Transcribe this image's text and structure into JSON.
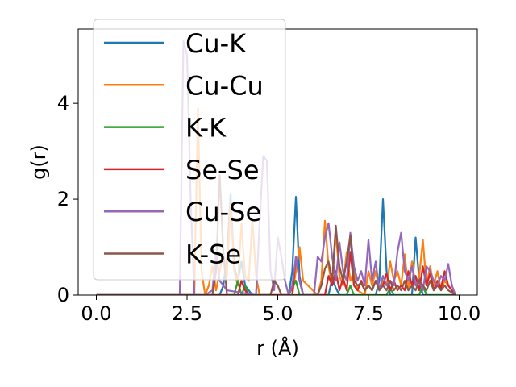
{
  "chart_data": {
    "type": "line",
    "xlabel": "r (Å)",
    "ylabel": "g(r)",
    "xlim": [
      -0.5,
      10.5
    ],
    "ylim": [
      0,
      5.55
    ],
    "xticks": [
      0.0,
      2.5,
      5.0,
      7.5,
      10.0
    ],
    "xtick_labels": [
      "0.0",
      "2.5",
      "5.0",
      "7.5",
      "10.0"
    ],
    "yticks": [
      0,
      2,
      4
    ],
    "ytick_labels": [
      "0",
      "2",
      "4"
    ],
    "grid": false,
    "legend_position": "top-left",
    "series": [
      {
        "name": "Cu-K",
        "color": "#1f77b4",
        "x": [
          0.0,
          3.3,
          3.4,
          3.5,
          3.6,
          3.7,
          3.8,
          3.9,
          4.0,
          4.1,
          4.3,
          5.3,
          5.4,
          5.5,
          5.6,
          5.7,
          6.4,
          6.5,
          6.6,
          6.7,
          6.8,
          7.7,
          7.8,
          7.9,
          8.0,
          8.1,
          8.7,
          8.8,
          8.9,
          9.0,
          9.9
        ],
        "y": [
          0,
          0,
          0,
          0.2,
          0.8,
          2.1,
          0.6,
          0.3,
          0.7,
          0.2,
          0,
          0,
          0.5,
          2.05,
          0.4,
          0,
          0,
          0.35,
          0.15,
          0,
          0,
          0,
          0.3,
          2.0,
          0.5,
          0,
          0,
          1.2,
          0.3,
          0,
          0
        ]
      },
      {
        "name": "Cu-Cu",
        "color": "#ff7f0e",
        "x": [
          0.0,
          2.7,
          2.8,
          2.9,
          3.0,
          3.1,
          3.2,
          3.3,
          3.5,
          3.6,
          3.7,
          3.8,
          3.9,
          4.0,
          4.1,
          4.2,
          4.3,
          4.4,
          4.5,
          5.4,
          5.5,
          5.6,
          5.7,
          6.1,
          6.2,
          6.3,
          6.4,
          6.5,
          6.6,
          6.7,
          6.8,
          6.9,
          7.0,
          7.1,
          7.2,
          7.4,
          7.5,
          7.6,
          7.7,
          7.8,
          7.9,
          8.0,
          8.1,
          8.2,
          8.3,
          8.4,
          8.5,
          8.6,
          8.7,
          8.8,
          8.9,
          9.0,
          9.1,
          9.2,
          9.3,
          9.4,
          9.5,
          9.6,
          9.7,
          9.8,
          9.9
        ],
        "y": [
          0,
          0,
          3.9,
          0.5,
          0,
          0.2,
          0.6,
          0.1,
          0.9,
          0.4,
          1.9,
          0.5,
          0.2,
          1.5,
          0.4,
          0.3,
          1.6,
          0.4,
          0,
          0,
          0.5,
          1.0,
          0.3,
          0,
          0.3,
          1.55,
          0.6,
          0.2,
          1.3,
          0.4,
          0.2,
          0.9,
          0.3,
          0.5,
          0.1,
          0,
          0.5,
          0.2,
          0.5,
          0.1,
          0.3,
          0.2,
          0.7,
          0.3,
          0.5,
          0.2,
          0.85,
          0.1,
          0.7,
          0.2,
          0.4,
          1.15,
          0.2,
          0.6,
          0.2,
          0.5,
          0.1,
          0.3,
          0.2,
          0.1,
          0
        ]
      },
      {
        "name": "K-K",
        "color": "#2ca02c",
        "x": [
          0.0,
          3.8,
          3.9,
          4.0,
          4.1,
          4.2,
          5.3,
          5.4,
          5.5,
          5.6,
          6.9,
          7.0,
          7.1,
          8.0,
          8.1,
          8.2,
          8.9,
          9.0,
          9.1,
          9.9
        ],
        "y": [
          0,
          0,
          0.3,
          0,
          0.2,
          0,
          0,
          0.15,
          0.3,
          0,
          0,
          0.2,
          0,
          0,
          0.15,
          0,
          0,
          0.2,
          0,
          0
        ]
      },
      {
        "name": "Se-Se",
        "color": "#d62728",
        "x": [
          0.0,
          3.9,
          4.0,
          4.1,
          4.2,
          5.4,
          5.5,
          5.6,
          5.7,
          6.3,
          6.4,
          6.5,
          6.6,
          6.7,
          6.8,
          6.9,
          7.0,
          7.1,
          7.2,
          7.3,
          7.4,
          7.5,
          7.6,
          7.7,
          7.8,
          7.9,
          8.0,
          8.1,
          8.2,
          8.3,
          8.4,
          8.5,
          8.6,
          8.7,
          8.8,
          8.9,
          9.0,
          9.1,
          9.2,
          9.3,
          9.4,
          9.5,
          9.6,
          9.7,
          9.8,
          9.9
        ],
        "y": [
          0,
          0,
          0.3,
          0.1,
          0,
          0,
          0.8,
          0.3,
          0,
          0,
          0.4,
          0.2,
          0.5,
          0.1,
          0.35,
          0.1,
          0.9,
          0.2,
          0.1,
          0.3,
          0.1,
          0.2,
          0.1,
          0.3,
          0.1,
          0.2,
          0.45,
          0.1,
          0.3,
          0.1,
          0.2,
          0.1,
          0.5,
          0.2,
          0.4,
          0.1,
          0.6,
          0.2,
          0.45,
          0.1,
          0.3,
          0.15,
          0.5,
          0.2,
          0.1,
          0
        ]
      },
      {
        "name": "Cu-Se",
        "color": "#9467bd",
        "x": [
          0.0,
          2.2,
          2.3,
          2.4,
          2.5,
          2.6,
          2.7,
          3.0,
          3.2,
          3.3,
          3.4,
          3.5,
          3.6,
          4.4,
          4.5,
          4.6,
          4.7,
          4.8,
          4.9,
          5.0,
          5.1,
          5.2,
          5.3,
          5.4,
          5.5,
          5.6,
          5.7,
          6.0,
          6.1,
          6.2,
          6.3,
          6.4,
          6.5,
          6.6,
          6.7,
          6.8,
          6.9,
          7.0,
          7.1,
          7.2,
          7.3,
          7.4,
          7.5,
          7.6,
          7.7,
          7.8,
          7.9,
          8.0,
          8.1,
          8.2,
          8.3,
          8.4,
          8.5,
          8.6,
          8.7,
          8.8,
          8.9,
          9.0,
          9.1,
          9.2,
          9.3,
          9.4,
          9.5,
          9.6,
          9.7,
          9.8,
          9.9
        ],
        "y": [
          0,
          0,
          0,
          5.3,
          5.0,
          2.0,
          0,
          0,
          0.1,
          0.9,
          0.3,
          0.2,
          0.1,
          0,
          1.5,
          2.9,
          2.8,
          0.5,
          0.1,
          1.2,
          0.8,
          0.3,
          0,
          0.2,
          0.8,
          0.3,
          0,
          0,
          0.8,
          0.7,
          1.2,
          1.5,
          0.8,
          0.3,
          1.1,
          0.5,
          0.3,
          1.3,
          0.6,
          0.3,
          0.5,
          0.2,
          1.15,
          0.3,
          0.7,
          0.1,
          0.4,
          0.2,
          0.3,
          0.2,
          0.9,
          1.3,
          0.5,
          0.3,
          0.6,
          0.2,
          0.3,
          0.1,
          0.6,
          0.5,
          0.3,
          0.2,
          0.4,
          0.3,
          0.65,
          0.2,
          0
        ]
      },
      {
        "name": "K-Se",
        "color": "#8c564b",
        "x": [
          0.0,
          3.2,
          3.3,
          3.4,
          3.5,
          3.6,
          4.8,
          4.9,
          5.0,
          5.1,
          6.1,
          6.2,
          6.3,
          6.4,
          6.5,
          6.6,
          6.7,
          6.8,
          6.9,
          7.0,
          7.1,
          7.2,
          7.3,
          7.4,
          7.5,
          7.6,
          7.7,
          7.8,
          7.9,
          8.0,
          8.1,
          8.2,
          8.3,
          8.4,
          8.5,
          8.6,
          8.7,
          8.8,
          8.9,
          9.0,
          9.1,
          9.2,
          9.3,
          9.4,
          9.5,
          9.6,
          9.7,
          9.8,
          9.9
        ],
        "y": [
          0,
          0,
          0.5,
          2.5,
          0.9,
          0,
          0,
          0.3,
          0.2,
          0,
          0,
          0.2,
          0.55,
          0.7,
          0.3,
          1.45,
          0.6,
          0.3,
          0.7,
          1.25,
          0.3,
          0.2,
          0.25,
          0.1,
          0.2,
          0.1,
          0.3,
          0.1,
          0.2,
          0.1,
          0.3,
          0.1,
          0.2,
          0.1,
          0.3,
          0.1,
          0.2,
          0.1,
          0.3,
          0.2,
          0.1,
          0.3,
          0.1,
          0.2,
          0.1,
          0.2,
          0.1,
          0.05,
          0
        ]
      }
    ]
  }
}
